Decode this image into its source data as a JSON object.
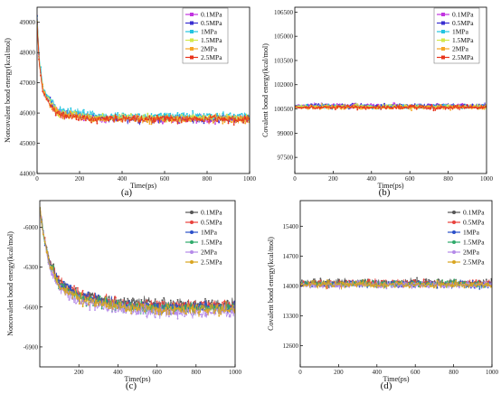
{
  "chart_data": [
    {
      "type": "line",
      "panel_label": "(a)",
      "xlabel": "Time(ps)",
      "ylabel": "Noncovalent bond energy(kcal/mol)",
      "xlim": [
        0,
        1000
      ],
      "ylim": [
        44000,
        49500
      ],
      "xticks": [
        0,
        200,
        400,
        600,
        800,
        1000
      ],
      "yticks": [
        44000,
        45000,
        46000,
        47000,
        48000,
        49000
      ],
      "grid": false,
      "legend_position": "top-right",
      "series": [
        {
          "name": "0.1MPa",
          "color": "#c233e0",
          "values_approx": {
            "x": [
              0,
              10,
              30,
              60,
              100,
              200,
              300,
              400,
              500,
              600,
              700,
              800,
              900,
              1000
            ],
            "y": [
              49300,
              47700,
              46700,
              46400,
              46000,
              45900,
              45800,
              45800,
              45800,
              45800,
              45800,
              45800,
              45800,
              45800
            ]
          }
        },
        {
          "name": "0.5MPa",
          "color": "#3a2fd1",
          "values_approx": {
            "x": [
              0,
              10,
              30,
              60,
              100,
              200,
              300,
              400,
              500,
              600,
              700,
              800,
              900,
              1000
            ],
            "y": [
              49200,
              47700,
              46700,
              46400,
              46000,
              45900,
              45850,
              45800,
              45800,
              45800,
              45800,
              45800,
              45800,
              45800
            ]
          }
        },
        {
          "name": "1MPa",
          "color": "#22c4e0",
          "values_approx": {
            "x": [
              0,
              10,
              30,
              60,
              100,
              200,
              300,
              400,
              500,
              600,
              700,
              800,
              900,
              1000
            ],
            "y": [
              49200,
              47800,
              46800,
              46500,
              46100,
              46000,
              45900,
              45900,
              45900,
              45900,
              45900,
              45900,
              45900,
              45900
            ]
          }
        },
        {
          "name": "1.5MPa",
          "color": "#d4e84a",
          "values_approx": {
            "x": [
              0,
              10,
              30,
              60,
              100,
              200,
              300,
              400,
              500,
              600,
              700,
              800,
              900,
              1000
            ],
            "y": [
              49100,
              47700,
              46700,
              46400,
              46000,
              45900,
              45850,
              45850,
              45850,
              45850,
              45850,
              45850,
              45850,
              45850
            ]
          }
        },
        {
          "name": "2MPa",
          "color": "#f5a623",
          "values_approx": {
            "x": [
              0,
              10,
              30,
              60,
              100,
              200,
              300,
              400,
              500,
              600,
              700,
              800,
              900,
              1000
            ],
            "y": [
              49000,
              47600,
              46700,
              46300,
              46000,
              45900,
              45800,
              45800,
              45800,
              45800,
              45800,
              45800,
              45800,
              45800
            ]
          }
        },
        {
          "name": "2.5MPa",
          "color": "#e8341c",
          "values_approx": {
            "x": [
              0,
              10,
              30,
              60,
              100,
              200,
              300,
              400,
              500,
              600,
              700,
              800,
              900,
              1000
            ],
            "y": [
              49000,
              47600,
              46600,
              46300,
              45950,
              45850,
              45800,
              45800,
              45800,
              45800,
              45800,
              45800,
              45800,
              45800
            ]
          }
        }
      ]
    },
    {
      "type": "line",
      "panel_label": "(b)",
      "xlabel": "Time(ps)",
      "ylabel": "Covalent bond energy(kcal/mol)",
      "xlim": [
        0,
        1000
      ],
      "ylim": [
        96500,
        106800
      ],
      "xticks": [
        0,
        200,
        400,
        600,
        800,
        1000
      ],
      "yticks": [
        97500,
        99000,
        100500,
        102000,
        103500,
        105000,
        106500
      ],
      "grid": false,
      "legend_position": "top-right",
      "series": [
        {
          "name": "0.1MPa",
          "color": "#c233e0",
          "values_approx": {
            "x": [
              0,
              1000
            ],
            "y": [
              100700,
              100700
            ]
          }
        },
        {
          "name": "0.5MPa",
          "color": "#3a2fd1",
          "values_approx": {
            "x": [
              0,
              1000
            ],
            "y": [
              100700,
              100700
            ]
          }
        },
        {
          "name": "1MPa",
          "color": "#22c4e0",
          "values_approx": {
            "x": [
              0,
              1000
            ],
            "y": [
              100650,
              100650
            ]
          }
        },
        {
          "name": "1.5MPa",
          "color": "#d4e84a",
          "values_approx": {
            "x": [
              0,
              1000
            ],
            "y": [
              100650,
              100650
            ]
          }
        },
        {
          "name": "2MPa",
          "color": "#f5a623",
          "values_approx": {
            "x": [
              0,
              1000
            ],
            "y": [
              100600,
              100600
            ]
          }
        },
        {
          "name": "2.5MPa",
          "color": "#e8341c",
          "values_approx": {
            "x": [
              0,
              1000
            ],
            "y": [
              100600,
              100600
            ]
          }
        }
      ]
    },
    {
      "type": "line",
      "panel_label": "(c)",
      "xlabel": "Time(ps)",
      "ylabel": "Noncovalent bond energy(kcal/mol)",
      "xlim": [
        0,
        1000
      ],
      "ylim": [
        -7050,
        -5800
      ],
      "xticks": [
        200,
        400,
        600,
        800,
        1000
      ],
      "yticks": [
        -6000,
        -6300,
        -6600,
        -6900
      ],
      "grid": false,
      "legend_position": "top-right",
      "series": [
        {
          "name": "0.1MPa",
          "color": "#555555",
          "values_approx": {
            "x": [
              0,
              20,
              50,
              100,
              200,
              300,
              400,
              500,
              600,
              700,
              800,
              900,
              1000
            ],
            "y": [
              -5850,
              -6050,
              -6250,
              -6400,
              -6500,
              -6530,
              -6560,
              -6570,
              -6580,
              -6580,
              -6580,
              -6580,
              -6580
            ]
          }
        },
        {
          "name": "0.5MPa",
          "color": "#e8413c",
          "values_approx": {
            "x": [
              0,
              20,
              50,
              100,
              200,
              300,
              400,
              500,
              600,
              700,
              800,
              900,
              1000
            ],
            "y": [
              -5850,
              -6060,
              -6260,
              -6410,
              -6510,
              -6540,
              -6570,
              -6580,
              -6590,
              -6590,
              -6590,
              -6590,
              -6590
            ]
          }
        },
        {
          "name": "1MPa",
          "color": "#2a4fc9",
          "values_approx": {
            "x": [
              0,
              20,
              50,
              100,
              200,
              300,
              400,
              500,
              600,
              700,
              800,
              900,
              1000
            ],
            "y": [
              -5850,
              -6070,
              -6270,
              -6420,
              -6520,
              -6550,
              -6580,
              -6590,
              -6600,
              -6600,
              -6600,
              -6600,
              -6600
            ]
          }
        },
        {
          "name": "1.5MPa",
          "color": "#2eaa6a",
          "values_approx": {
            "x": [
              0,
              20,
              50,
              100,
              200,
              300,
              400,
              500,
              600,
              700,
              800,
              900,
              1000
            ],
            "y": [
              -5850,
              -6070,
              -6280,
              -6430,
              -6530,
              -6560,
              -6590,
              -6600,
              -6610,
              -6610,
              -6610,
              -6610,
              -6610
            ]
          }
        },
        {
          "name": "2MPa",
          "color": "#b48ae8",
          "values_approx": {
            "x": [
              0,
              20,
              50,
              100,
              200,
              300,
              400,
              500,
              600,
              700,
              800,
              900,
              1000
            ],
            "y": [
              -5850,
              -6080,
              -6300,
              -6460,
              -6560,
              -6590,
              -6620,
              -6630,
              -6640,
              -6640,
              -6640,
              -6640,
              -6640
            ]
          }
        },
        {
          "name": "2.5MPa",
          "color": "#d9a520",
          "values_approx": {
            "x": [
              0,
              20,
              50,
              100,
              200,
              300,
              400,
              500,
              600,
              700,
              800,
              900,
              1000
            ],
            "y": [
              -5850,
              -6070,
              -6280,
              -6440,
              -6540,
              -6570,
              -6600,
              -6610,
              -6620,
              -6620,
              -6620,
              -6620,
              -6620
            ]
          }
        }
      ]
    },
    {
      "type": "line",
      "panel_label": "(d)",
      "xlabel": "Time(ps)",
      "ylabel": "Covalent bond energy(kcal/mol)",
      "xlim": [
        0,
        1000
      ],
      "ylim": [
        12100,
        16000
      ],
      "xticks": [
        0,
        200,
        400,
        600,
        800,
        1000
      ],
      "yticks": [
        12600,
        13300,
        14000,
        14700,
        15400
      ],
      "grid": false,
      "legend_position": "top-right",
      "series": [
        {
          "name": "0.1MPa",
          "color": "#555555",
          "values_approx": {
            "x": [
              0,
              1000
            ],
            "y": [
              14080,
              14080
            ]
          }
        },
        {
          "name": "0.5MPa",
          "color": "#e8413c",
          "values_approx": {
            "x": [
              0,
              1000
            ],
            "y": [
              14060,
              14060
            ]
          }
        },
        {
          "name": "1MPa",
          "color": "#2a4fc9",
          "values_approx": {
            "x": [
              0,
              1000
            ],
            "y": [
              14040,
              14040
            ]
          }
        },
        {
          "name": "1.5MPa",
          "color": "#2eaa6a",
          "values_approx": {
            "x": [
              0,
              1000
            ],
            "y": [
              14050,
              14050
            ]
          }
        },
        {
          "name": "2MPa",
          "color": "#b48ae8",
          "values_approx": {
            "x": [
              0,
              1000
            ],
            "y": [
              14020,
              14020
            ]
          }
        },
        {
          "name": "2.5MPa",
          "color": "#d9a520",
          "values_approx": {
            "x": [
              0,
              1000
            ],
            "y": [
              14030,
              14030
            ]
          }
        }
      ]
    }
  ]
}
